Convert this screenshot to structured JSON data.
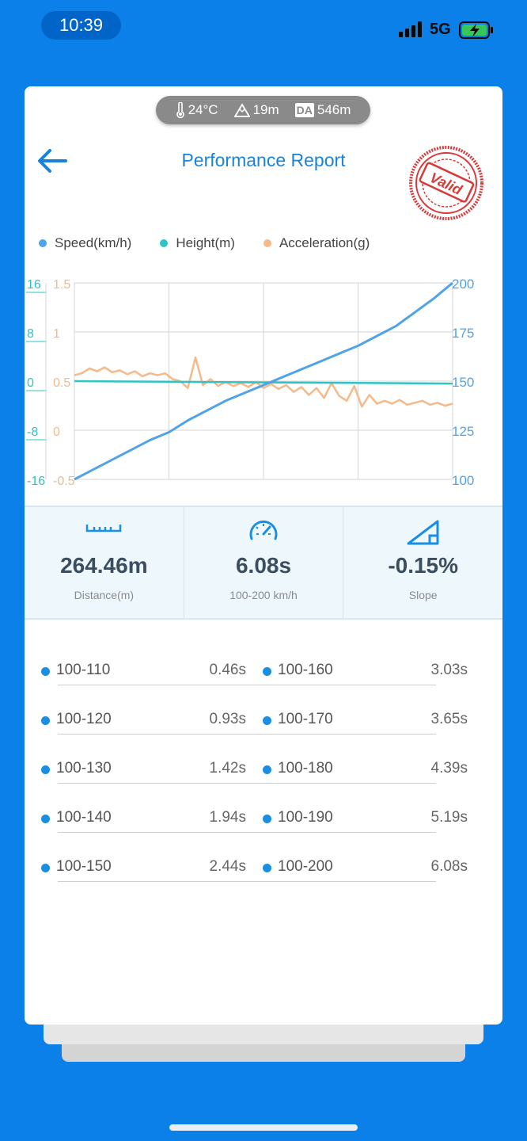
{
  "status_bar": {
    "time": "10:39",
    "network": "5G"
  },
  "environment": {
    "temperature": "24°C",
    "altitude": "19m",
    "da_badge": "DA",
    "density_altitude": "546m"
  },
  "header": {
    "title": "Performance Report",
    "stamp_text": "Valid"
  },
  "chart_data": {
    "type": "line",
    "legend_position": "top",
    "grid": true,
    "series": [
      {
        "name": "Speed(km/h)",
        "color": "#4fa3e6",
        "axis": "right",
        "x": [
          0.0,
          0.05,
          0.1,
          0.15,
          0.2,
          0.25,
          0.3,
          0.35,
          0.4,
          0.45,
          0.5,
          0.55,
          0.6,
          0.65,
          0.7,
          0.75,
          0.8,
          0.85,
          0.9,
          0.95,
          1.0
        ],
        "values": [
          100,
          105,
          110,
          115,
          120,
          124,
          130,
          135,
          140,
          144,
          148,
          152,
          156,
          160,
          164,
          168,
          173,
          178,
          185,
          192,
          200
        ]
      },
      {
        "name": "Height(m)",
        "color": "#2ec3c4",
        "axis": "left_outer",
        "x": [
          0.0,
          0.25,
          0.5,
          0.75,
          1.0
        ],
        "values": [
          0.0,
          -0.1,
          -0.2,
          -0.3,
          -0.4
        ]
      },
      {
        "name": "Acceleration(g)",
        "color": "#f5b98a",
        "axis": "left_inner",
        "x": [
          0.0,
          0.02,
          0.04,
          0.06,
          0.08,
          0.1,
          0.12,
          0.14,
          0.16,
          0.18,
          0.2,
          0.22,
          0.24,
          0.26,
          0.28,
          0.3,
          0.32,
          0.34,
          0.36,
          0.38,
          0.4,
          0.42,
          0.44,
          0.46,
          0.48,
          0.5,
          0.52,
          0.54,
          0.56,
          0.58,
          0.6,
          0.62,
          0.64,
          0.66,
          0.68,
          0.7,
          0.72,
          0.74,
          0.76,
          0.78,
          0.8,
          0.82,
          0.84,
          0.86,
          0.88,
          0.9,
          0.92,
          0.94,
          0.96,
          0.98,
          1.0
        ],
        "values": [
          0.56,
          0.58,
          0.63,
          0.6,
          0.64,
          0.59,
          0.61,
          0.57,
          0.6,
          0.55,
          0.58,
          0.56,
          0.58,
          0.52,
          0.5,
          0.43,
          0.74,
          0.46,
          0.52,
          0.45,
          0.49,
          0.45,
          0.48,
          0.44,
          0.49,
          0.43,
          0.47,
          0.42,
          0.46,
          0.39,
          0.44,
          0.36,
          0.43,
          0.33,
          0.48,
          0.35,
          0.3,
          0.45,
          0.24,
          0.36,
          0.27,
          0.3,
          0.27,
          0.31,
          0.26,
          0.28,
          0.3,
          0.26,
          0.28,
          0.25,
          0.27
        ]
      }
    ],
    "axes": {
      "left_outer": {
        "ticks": [
          "16",
          "8",
          "0",
          "-8",
          "-16"
        ],
        "range": [
          -16,
          16
        ],
        "color": "#2ec3c4"
      },
      "left_inner": {
        "ticks": [
          "1.5",
          "1",
          "0.5",
          "0",
          "-0.5"
        ],
        "range": [
          -0.5,
          1.5
        ],
        "color": "#f5b98a"
      },
      "right": {
        "ticks": [
          "200",
          "175",
          "150",
          "125",
          "100"
        ],
        "range": [
          100,
          200
        ],
        "color": "#4fa3e6"
      }
    }
  },
  "stats": [
    {
      "icon": "ruler-icon",
      "value": "264.46m",
      "label": "Distance(m)"
    },
    {
      "icon": "speedometer-icon",
      "value": "6.08s",
      "label": "100-200 km/h"
    },
    {
      "icon": "slope-icon",
      "value": "-0.15%",
      "label": "Slope"
    }
  ],
  "splits": {
    "left": [
      {
        "label": "100-110",
        "value": "0.46s"
      },
      {
        "label": "100-120",
        "value": "0.93s"
      },
      {
        "label": "100-130",
        "value": "1.42s"
      },
      {
        "label": "100-140",
        "value": "1.94s"
      },
      {
        "label": "100-150",
        "value": "2.44s"
      }
    ],
    "right": [
      {
        "label": "100-160",
        "value": "3.03s"
      },
      {
        "label": "100-170",
        "value": "3.65s"
      },
      {
        "label": "100-180",
        "value": "4.39s"
      },
      {
        "label": "100-190",
        "value": "5.19s"
      },
      {
        "label": "100-200",
        "value": "6.08s"
      }
    ]
  },
  "colors": {
    "background": "#0a80e8",
    "accent": "#1883d9",
    "stamp": "#d83a3a"
  }
}
